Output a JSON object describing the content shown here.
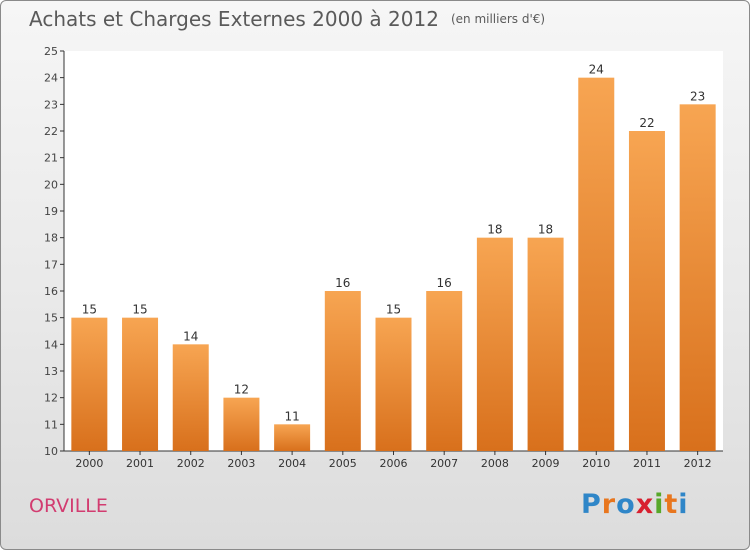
{
  "page": {
    "title": "Achats et Charges Externes 2000 à 2012",
    "unit": "(en milliers d'€)",
    "town": "ORVILLE",
    "logo": "Proxiti"
  },
  "colors": {
    "bar_top": "#f7a552",
    "bar_bottom": "#d8701c",
    "town": "#d23c70",
    "title": "#5a5a5a"
  },
  "chart_data": {
    "type": "bar",
    "title": "Achats et Charges Externes 2000 à 2012",
    "subtitle": "(en milliers d'€)",
    "categories": [
      "2000",
      "2001",
      "2002",
      "2003",
      "2004",
      "2005",
      "2006",
      "2007",
      "2008",
      "2009",
      "2010",
      "2011",
      "2012"
    ],
    "values": [
      15,
      15,
      14,
      12,
      11,
      16,
      15,
      16,
      18,
      18,
      24,
      22,
      23
    ],
    "ylim": [
      10,
      25
    ],
    "yticks": [
      10,
      11,
      12,
      13,
      14,
      15,
      16,
      17,
      18,
      19,
      20,
      21,
      22,
      23,
      24,
      25
    ],
    "grid": false,
    "legend": "none"
  }
}
